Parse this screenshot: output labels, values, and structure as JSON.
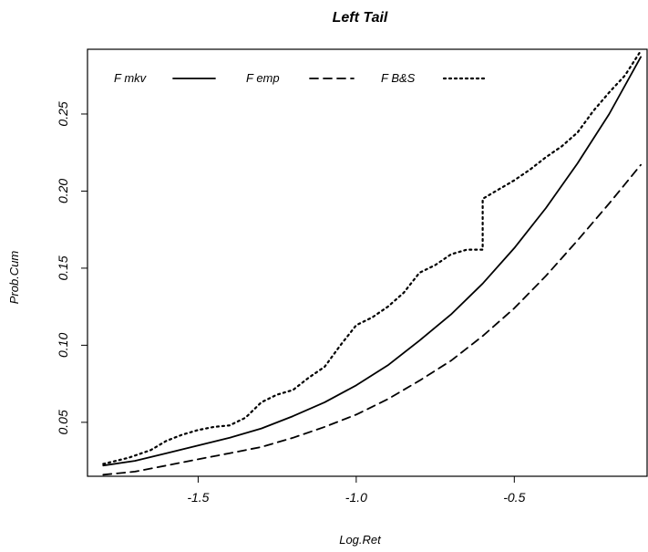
{
  "chart_data": {
    "type": "line",
    "title": "Left Tail",
    "xlabel": "Log.Ret",
    "ylabel": "Prob.Cum",
    "xlim": [
      -1.85,
      -0.08
    ],
    "ylim": [
      0.015,
      0.292
    ],
    "x_ticks": [
      -1.5,
      -1.0,
      -0.5
    ],
    "x_tick_labels": [
      "-1.5",
      "-1.0",
      "-0.5"
    ],
    "y_ticks": [
      0.05,
      0.1,
      0.15,
      0.2,
      0.25
    ],
    "y_tick_labels": [
      "0.05",
      "0.10",
      "0.15",
      "0.20",
      "0.25"
    ],
    "grid": false,
    "legend_position": "top-left",
    "series": [
      {
        "name": "F mkv",
        "style": "solid",
        "color": "#000000",
        "x": [
          -1.8,
          -1.7,
          -1.6,
          -1.5,
          -1.4,
          -1.3,
          -1.2,
          -1.1,
          -1.0,
          -0.9,
          -0.8,
          -0.7,
          -0.6,
          -0.5,
          -0.4,
          -0.3,
          -0.2,
          -0.1
        ],
        "y": [
          0.022,
          0.025,
          0.03,
          0.035,
          0.04,
          0.046,
          0.054,
          0.063,
          0.074,
          0.087,
          0.103,
          0.12,
          0.14,
          0.163,
          0.189,
          0.218,
          0.25,
          0.287
        ]
      },
      {
        "name": "F emp",
        "style": "dashed",
        "color": "#000000",
        "x": [
          -1.8,
          -1.7,
          -1.6,
          -1.5,
          -1.4,
          -1.3,
          -1.2,
          -1.1,
          -1.0,
          -0.9,
          -0.8,
          -0.7,
          -0.6,
          -0.5,
          -0.4,
          -0.3,
          -0.2,
          -0.1
        ],
        "y": [
          0.016,
          0.018,
          0.022,
          0.026,
          0.03,
          0.034,
          0.04,
          0.047,
          0.055,
          0.065,
          0.077,
          0.09,
          0.106,
          0.124,
          0.145,
          0.168,
          0.192,
          0.217
        ]
      },
      {
        "name": "F B&S",
        "style": "dotted",
        "color": "#000000",
        "x": [
          -1.8,
          -1.72,
          -1.65,
          -1.6,
          -1.55,
          -1.5,
          -1.45,
          -1.4,
          -1.35,
          -1.3,
          -1.25,
          -1.2,
          -1.15,
          -1.1,
          -1.05,
          -1.0,
          -0.95,
          -0.9,
          -0.85,
          -0.8,
          -0.75,
          -0.7,
          -0.65,
          -0.6,
          -0.6,
          -0.55,
          -0.5,
          -0.45,
          -0.4,
          -0.35,
          -0.3,
          -0.25,
          -0.2,
          -0.15,
          -0.1
        ],
        "y": [
          0.023,
          0.027,
          0.032,
          0.038,
          0.042,
          0.045,
          0.047,
          0.048,
          0.053,
          0.063,
          0.068,
          0.071,
          0.079,
          0.086,
          0.1,
          0.113,
          0.118,
          0.125,
          0.134,
          0.147,
          0.152,
          0.159,
          0.162,
          0.162,
          0.195,
          0.201,
          0.207,
          0.214,
          0.222,
          0.229,
          0.238,
          0.252,
          0.264,
          0.275,
          0.291
        ]
      }
    ]
  }
}
